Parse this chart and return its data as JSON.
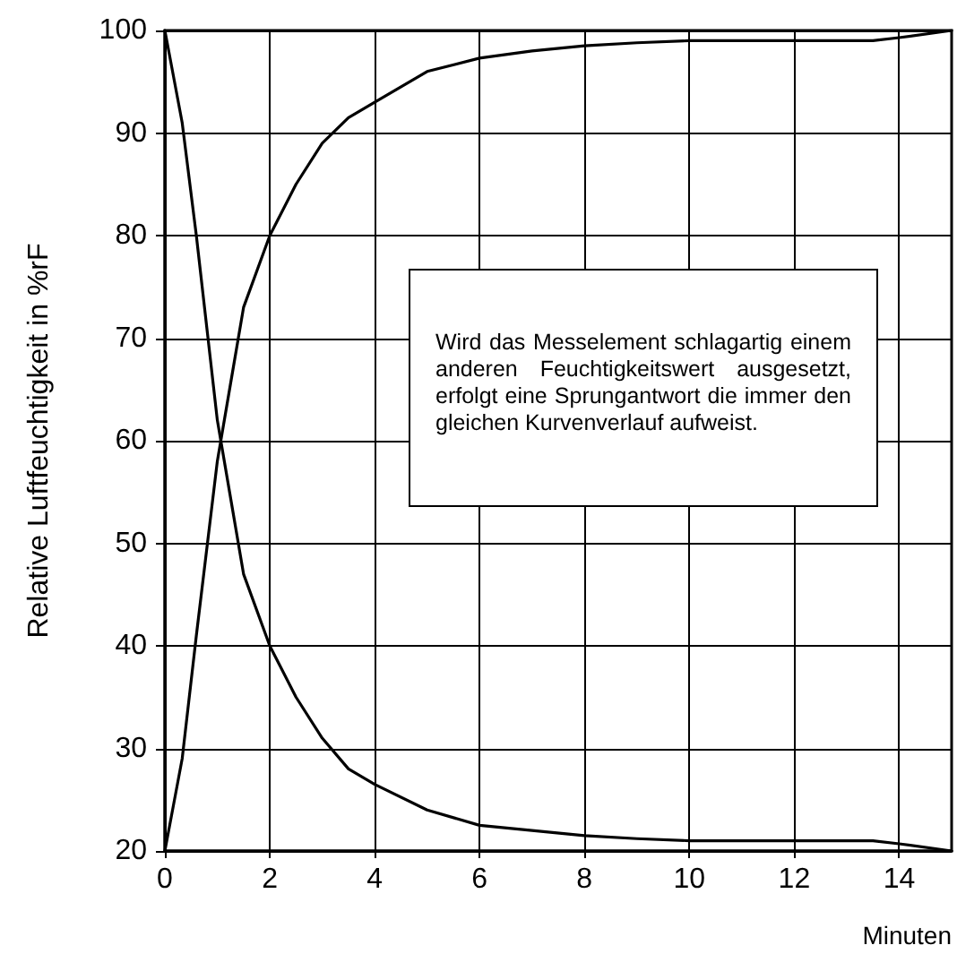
{
  "chart_data": {
    "type": "line",
    "xlabel": "Minuten",
    "ylabel": "Relative Luftfeuchtigkeit in %rF",
    "xlim": [
      0,
      15
    ],
    "xticks": [
      0,
      2,
      4,
      6,
      8,
      10,
      12,
      14
    ],
    "ylim": [
      20,
      100
    ],
    "yticks": [
      20,
      30,
      40,
      50,
      60,
      70,
      80,
      90,
      100
    ],
    "grid": true,
    "marker": "none",
    "line_style": "solid",
    "annotations": [
      "Wird das Messelement schlagartig einem anderen Feuchtigkeitswert ausgesetzt, erfolgt eine Sprungantwort die immer den gleichen Kurvenverlauf aufweist."
    ],
    "series": [
      {
        "color": "#000000",
        "x": [
          0,
          0.33,
          0.6,
          1,
          1.5,
          2,
          2.5,
          3,
          3.5,
          4,
          5,
          6,
          7,
          8,
          9,
          10,
          11,
          12,
          13,
          13.5,
          14,
          15
        ],
        "values": [
          20,
          29,
          41,
          58,
          73,
          80,
          85,
          89,
          91.5,
          93,
          96,
          97.3,
          98,
          98.5,
          98.8,
          99,
          99,
          99,
          99,
          99,
          99.3,
          100
        ]
      },
      {
        "color": "#000000",
        "x": [
          0,
          0.33,
          0.6,
          1,
          1.5,
          2,
          2.5,
          3,
          3.5,
          4,
          5,
          6,
          7,
          8,
          9,
          10,
          11,
          12,
          13,
          13.5,
          14,
          15
        ],
        "values": [
          100,
          91,
          80,
          62,
          47,
          40,
          35,
          31,
          28,
          26.5,
          24,
          22.5,
          22,
          21.5,
          21.2,
          21,
          21,
          21,
          21,
          21,
          20.7,
          20
        ]
      }
    ]
  }
}
